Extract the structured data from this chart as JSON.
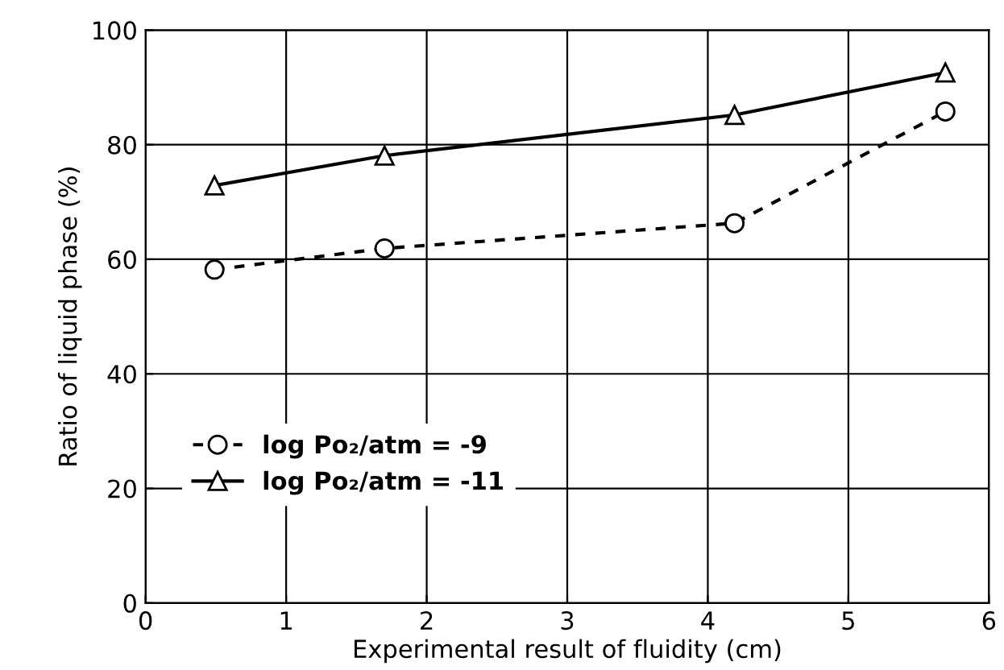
{
  "chart_data": {
    "type": "line",
    "xlabel": "Experimental result of fluidity (cm)",
    "ylabel": "Ratio of liquid phase (%)",
    "xlim": [
      0,
      6
    ],
    "xticks": [
      0,
      1,
      2,
      3,
      4,
      5,
      6
    ],
    "ylim": [
      0,
      100
    ],
    "yticks": [
      0,
      20,
      40,
      60,
      80,
      100
    ],
    "grid": true,
    "legend": "bottom left",
    "series": [
      {
        "name": "log Po₂/atm = -9",
        "color": "#000000",
        "x": [
          0.49,
          1.7,
          4.19,
          5.69
        ],
        "values": [
          58.2,
          61.9,
          66.3,
          85.8
        ],
        "marker": "circle",
        "line_style": "dashed"
      },
      {
        "name": "log Po₂/atm = -11",
        "color": "#000000",
        "x": [
          0.49,
          1.7,
          4.19,
          5.69
        ],
        "values": [
          72.9,
          78.1,
          85.2,
          92.6
        ],
        "marker": "triangle",
        "line_style": "solid"
      }
    ]
  }
}
